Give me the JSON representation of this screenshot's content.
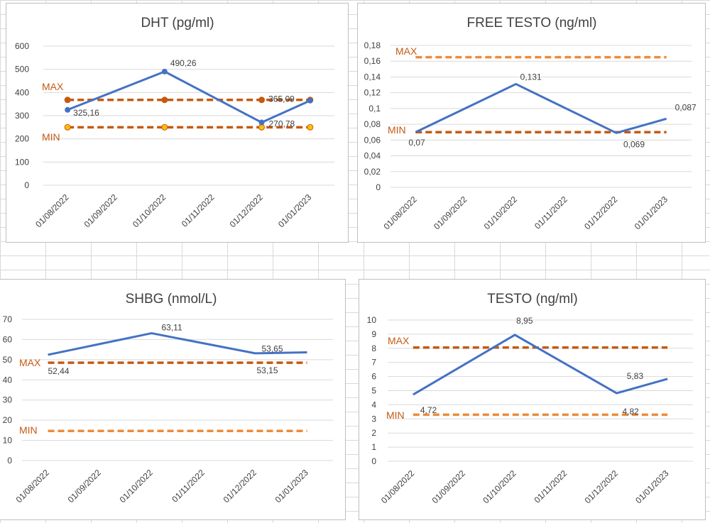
{
  "colors": {
    "series": "#4472c4",
    "max": "#c55a11",
    "min": "#ed8b3a",
    "grid": "#d9d9d9",
    "marker_min_fill": "#ffc000"
  },
  "chart_data": [
    {
      "type": "line",
      "title": "DHT (pg/ml)",
      "categories": [
        "01/08/2022",
        "01/09/2022",
        "01/10/2022",
        "01/11/2022",
        "01/12/2022",
        "01/01/2023"
      ],
      "y_ticks": [
        "0",
        "100",
        "200",
        "300",
        "400",
        "500",
        "600"
      ],
      "ylim": [
        0,
        600
      ],
      "series": [
        {
          "name": "DHT",
          "points": [
            [
              0,
              325.16
            ],
            [
              2,
              490.26
            ],
            [
              4,
              270.78
            ],
            [
              5,
              365.09
            ]
          ],
          "labels": [
            "325,16",
            "490,26",
            "270,78",
            "365,09"
          ]
        }
      ],
      "ref_lines": [
        {
          "name": "MAX",
          "label": "MAX",
          "value": 368,
          "color": "#c55a11",
          "markers": true,
          "marker_fill": "#c55a11"
        },
        {
          "name": "MIN",
          "label": "MIN",
          "value": 250,
          "color": "#c55a11",
          "markers": true,
          "marker_fill": "#ffc000"
        }
      ]
    },
    {
      "type": "line",
      "title": "FREE TESTO (ng/ml)",
      "categories": [
        "01/08/2022",
        "01/09/2022",
        "01/10/2022",
        "01/11/2022",
        "01/12/2022",
        "01/01/2023"
      ],
      "y_ticks": [
        "0",
        "0,02",
        "0,04",
        "0,06",
        "0,08",
        "0,1",
        "0,12",
        "0,14",
        "0,16",
        "0,18"
      ],
      "ylim": [
        0,
        0.18
      ],
      "series": [
        {
          "name": "FREE TESTO",
          "points": [
            [
              0,
              0.07
            ],
            [
              2,
              0.131
            ],
            [
              4,
              0.069
            ],
            [
              5,
              0.087
            ]
          ],
          "labels": [
            "0,07",
            "0,131",
            "0,069",
            "0,087"
          ]
        }
      ],
      "ref_lines": [
        {
          "name": "MAX",
          "label": "MAX",
          "value": 0.165,
          "color": "#ed8b3a",
          "markers": false
        },
        {
          "name": "MIN",
          "label": "MIN",
          "value": 0.07,
          "color": "#c55a11",
          "markers": false
        }
      ]
    },
    {
      "type": "line",
      "title": "SHBG (nmol/L)",
      "categories": [
        "01/08/2022",
        "01/09/2022",
        "01/10/2022",
        "01/11/2022",
        "01/12/2022",
        "01/01/2023"
      ],
      "y_ticks": [
        "0",
        "10",
        "20",
        "30",
        "40",
        "50",
        "60",
        "70"
      ],
      "ylim": [
        0,
        70
      ],
      "series": [
        {
          "name": "SHBG",
          "points": [
            [
              0,
              52.44
            ],
            [
              2,
              63.11
            ],
            [
              4,
              53.15
            ],
            [
              5,
              53.65
            ]
          ],
          "labels": [
            "52,44",
            "63,11",
            "53,15",
            "53,65"
          ]
        }
      ],
      "ref_lines": [
        {
          "name": "MAX",
          "label": "MAX",
          "value": 48.5,
          "color": "#c55a11",
          "markers": false
        },
        {
          "name": "MIN",
          "label": "MIN",
          "value": 14.7,
          "color": "#ed8b3a",
          "markers": false
        }
      ]
    },
    {
      "type": "line",
      "title": "TESTO (ng/ml)",
      "categories": [
        "01/08/2022",
        "01/09/2022",
        "01/10/2022",
        "01/11/2022",
        "01/12/2022",
        "01/01/2023"
      ],
      "y_ticks": [
        "0",
        "1",
        "2",
        "3",
        "4",
        "5",
        "6",
        "7",
        "8",
        "9",
        "10"
      ],
      "ylim": [
        0,
        10
      ],
      "series": [
        {
          "name": "TESTO",
          "points": [
            [
              0,
              4.72
            ],
            [
              2,
              8.95
            ],
            [
              4,
              4.82
            ],
            [
              5,
              5.83
            ]
          ],
          "labels": [
            "4,72",
            "8,95",
            "4,82",
            "5,83"
          ]
        }
      ],
      "ref_lines": [
        {
          "name": "MAX",
          "label": "MAX",
          "value": 8.05,
          "color": "#c55a11",
          "markers": false
        },
        {
          "name": "MIN",
          "label": "MIN",
          "value": 3.3,
          "color": "#ed8b3a",
          "markers": false
        }
      ]
    }
  ]
}
